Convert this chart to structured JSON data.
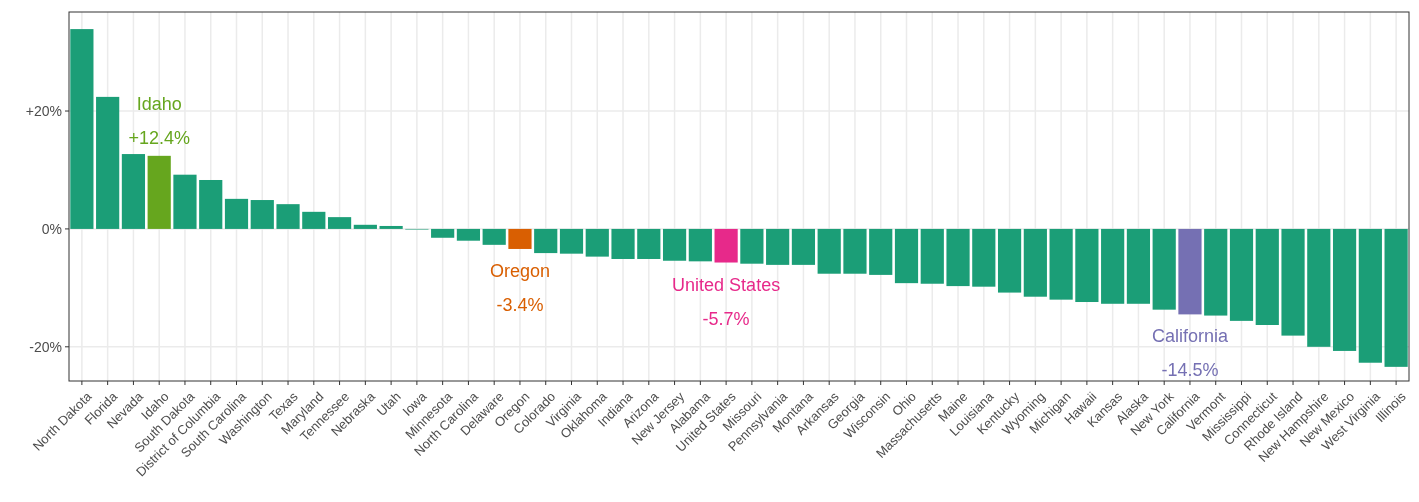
{
  "chart_data": {
    "type": "bar",
    "categories": [
      "North Dakota",
      "Florida",
      "Nevada",
      "Idaho",
      "South Dakota",
      "District of Columbia",
      "South Carolina",
      "Washington",
      "Texas",
      "Maryland",
      "Tennessee",
      "Nebraska",
      "Utah",
      "Iowa",
      "Minnesota",
      "North Carolina",
      "Delaware",
      "Oregon",
      "Colorado",
      "Virginia",
      "Oklahoma",
      "Indiana",
      "Arizona",
      "New Jersey",
      "Alabama",
      "United States",
      "Missouri",
      "Pennsylvania",
      "Montana",
      "Arkansas",
      "Georgia",
      "Wisconsin",
      "Ohio",
      "Massachusetts",
      "Maine",
      "Louisiana",
      "Kentucky",
      "Wyoming",
      "Michigan",
      "Hawaii",
      "Kansas",
      "Alaska",
      "New York",
      "California",
      "Vermont",
      "Mississippi",
      "Connecticut",
      "Rhode Island",
      "New Hampshire",
      "New Mexico",
      "West Virginia",
      "Illinois"
    ],
    "values": [
      33.9,
      22.4,
      12.7,
      12.4,
      9.2,
      8.3,
      5.1,
      4.9,
      4.2,
      2.9,
      2.0,
      0.7,
      0.5,
      -0.1,
      -1.5,
      -2.0,
      -2.7,
      -3.4,
      -4.1,
      -4.2,
      -4.7,
      -5.1,
      -5.1,
      -5.4,
      -5.5,
      -5.7,
      -5.9,
      -6.1,
      -6.1,
      -7.6,
      -7.6,
      -7.8,
      -9.2,
      -9.3,
      -9.7,
      -9.8,
      -10.8,
      -11.5,
      -12.0,
      -12.4,
      -12.7,
      -12.7,
      -13.7,
      -14.5,
      -14.7,
      -15.6,
      -16.3,
      -18.1,
      -20.0,
      -20.7,
      -22.7,
      -23.4
    ],
    "colors": [
      "#1b9e77",
      "#1b9e77",
      "#1b9e77",
      "#66a61e",
      "#1b9e77",
      "#1b9e77",
      "#1b9e77",
      "#1b9e77",
      "#1b9e77",
      "#1b9e77",
      "#1b9e77",
      "#1b9e77",
      "#1b9e77",
      "#1b9e77",
      "#1b9e77",
      "#1b9e77",
      "#1b9e77",
      "#d95f02",
      "#1b9e77",
      "#1b9e77",
      "#1b9e77",
      "#1b9e77",
      "#1b9e77",
      "#1b9e77",
      "#1b9e77",
      "#e7298a",
      "#1b9e77",
      "#1b9e77",
      "#1b9e77",
      "#1b9e77",
      "#1b9e77",
      "#1b9e77",
      "#1b9e77",
      "#1b9e77",
      "#1b9e77",
      "#1b9e77",
      "#1b9e77",
      "#1b9e77",
      "#1b9e77",
      "#1b9e77",
      "#1b9e77",
      "#1b9e77",
      "#1b9e77",
      "#7570b3",
      "#1b9e77",
      "#1b9e77",
      "#1b9e77",
      "#1b9e77",
      "#1b9e77",
      "#1b9e77",
      "#1b9e77",
      "#1b9e77"
    ],
    "ylim": [
      -25.8,
      36.8
    ],
    "yticks": [
      {
        "value": -20,
        "label": "-20%"
      },
      {
        "value": 0,
        "label": "0%"
      },
      {
        "value": 20,
        "label": "+20%"
      }
    ],
    "grid": true,
    "annotations": [
      {
        "text": "Idaho",
        "x": "Idaho",
        "y": 12.4
      },
      {
        "text": "+12.4%",
        "x": "Idaho",
        "y": 12.4
      },
      {
        "text": "Oregon",
        "x": "Oregon",
        "y": -3.4
      },
      {
        "text": "-3.4%",
        "x": "Oregon",
        "y": -3.4
      },
      {
        "text": "United States",
        "x": "United States",
        "y": -5.7
      },
      {
        "text": "-5.7%",
        "x": "United States",
        "y": -5.7
      },
      {
        "text": "California",
        "x": "California",
        "y": -14.5
      },
      {
        "text": "-14.5%",
        "x": "California",
        "y": -14.5
      }
    ]
  }
}
